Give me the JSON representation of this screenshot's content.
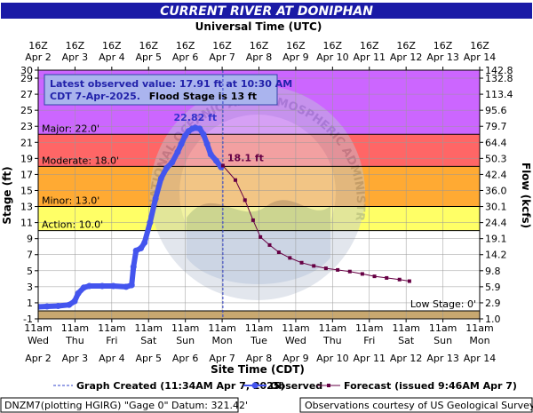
{
  "title": "CURRENT RIVER AT DONIPHAN",
  "top_axis_title": "Universal Time (UTC)",
  "bottom_axis_title": "Site Time (CDT)",
  "left_axis_title": "Stage (ft)",
  "right_axis_title": "Flow (kcfs)",
  "info_box": {
    "line1": "Latest observed value: 17.91 ft at 10:30 AM",
    "line2a": "CDT 7-Apr-2025.",
    "line2b": "Flood Stage is 13 ft"
  },
  "watermark_text": "NATIONAL OCEANIC AND ATMOSPHERIC ADMINISTRATION · U.S. DEPARTMENT OF COMMERCE",
  "legend": {
    "graph_created": "Graph Created (11:34AM Apr 7, 2025)",
    "observed": "Observed",
    "forecast": "Forecast (issued 9:46AM Apr 7)"
  },
  "footer": {
    "left": "DNZM7(plotting HGIRG) \"Gage 0\" Datum: 321.42'",
    "right": "Observations courtesy of US Geological Survey"
  },
  "colors": {
    "title_bg": "#1a1aa6",
    "major": "#cc66ff",
    "moderate": "#ff6666",
    "minor": "#ffaa33",
    "action": "#ffff66",
    "low": "#c8a870",
    "observed": "#4455ee",
    "forecast": "#660044",
    "crest_label": "#3333cc",
    "info_text": "#2222aa"
  },
  "chart_data": {
    "type": "line",
    "x_unit": "days since Apr 2 00:00 CDT",
    "stage_ylim": [
      -1,
      30
    ],
    "stage_ticks": [
      -1,
      1,
      3,
      5,
      7,
      9,
      11,
      13,
      15,
      17,
      19,
      21,
      23,
      25,
      27,
      29,
      30
    ],
    "flow_ticks": [
      {
        "stage": -1,
        "label": "1.0"
      },
      {
        "stage": 1,
        "label": "2.9"
      },
      {
        "stage": 3,
        "label": "5.9"
      },
      {
        "stage": 5,
        "label": "9.8"
      },
      {
        "stage": 7,
        "label": "14.2"
      },
      {
        "stage": 9,
        "label": "19.1"
      },
      {
        "stage": 11,
        "label": "24.4"
      },
      {
        "stage": 13,
        "label": "30.1"
      },
      {
        "stage": 15,
        "label": "36.0"
      },
      {
        "stage": 17,
        "label": "42.4"
      },
      {
        "stage": 19,
        "label": "50.3"
      },
      {
        "stage": 21,
        "label": "64.4"
      },
      {
        "stage": 23,
        "label": "79.7"
      },
      {
        "stage": 25,
        "label": "95.6"
      },
      {
        "stage": 27,
        "label": "113.4"
      },
      {
        "stage": 29,
        "label": "132.8"
      },
      {
        "stage": 30,
        "label": "142.8"
      }
    ],
    "bottom_ticks": [
      {
        "x": -0.54,
        "l1": "11am",
        "l2": "Wed",
        "l3": "Apr 2"
      },
      {
        "x": 0.46,
        "l1": "11am",
        "l2": "Thu",
        "l3": "Apr 3"
      },
      {
        "x": 1.46,
        "l1": "11am",
        "l2": "Fri",
        "l3": "Apr 4"
      },
      {
        "x": 2.46,
        "l1": "11am",
        "l2": "Sat",
        "l3": "Apr 5"
      },
      {
        "x": 3.46,
        "l1": "11am",
        "l2": "Sun",
        "l3": "Apr 6"
      },
      {
        "x": 4.46,
        "l1": "11am",
        "l2": "Mon",
        "l3": "Apr 7"
      },
      {
        "x": 5.46,
        "l1": "11am",
        "l2": "Tue",
        "l3": "Apr 8"
      },
      {
        "x": 6.46,
        "l1": "11am",
        "l2": "Wed",
        "l3": "Apr 9"
      },
      {
        "x": 7.46,
        "l1": "11am",
        "l2": "Thu",
        "l3": "Apr 10"
      },
      {
        "x": 8.46,
        "l1": "11am",
        "l2": "Fri",
        "l3": "Apr 11"
      },
      {
        "x": 9.46,
        "l1": "11am",
        "l2": "Sat",
        "l3": "Apr 12"
      },
      {
        "x": 10.46,
        "l1": "11am",
        "l2": "Sun",
        "l3": "Apr 13"
      },
      {
        "x": 11.46,
        "l1": "11am",
        "l2": "Mon",
        "l3": "Apr 14"
      }
    ],
    "top_ticks": [
      {
        "x": -0.54,
        "l1": "16Z",
        "l2": "Apr 2"
      },
      {
        "x": 0.46,
        "l1": "16Z",
        "l2": "Apr 3"
      },
      {
        "x": 1.46,
        "l1": "16Z",
        "l2": "Apr 4"
      },
      {
        "x": 2.46,
        "l1": "16Z",
        "l2": "Apr 5"
      },
      {
        "x": 3.46,
        "l1": "16Z",
        "l2": "Apr 6"
      },
      {
        "x": 4.46,
        "l1": "16Z",
        "l2": "Apr 7"
      },
      {
        "x": 5.46,
        "l1": "16Z",
        "l2": "Apr 8"
      },
      {
        "x": 6.46,
        "l1": "16Z",
        "l2": "Apr 9"
      },
      {
        "x": 7.46,
        "l1": "16Z",
        "l2": "Apr 10"
      },
      {
        "x": 8.46,
        "l1": "16Z",
        "l2": "Apr 11"
      },
      {
        "x": 9.46,
        "l1": "16Z",
        "l2": "Apr 12"
      },
      {
        "x": 10.46,
        "l1": "16Z",
        "l2": "Apr 13"
      },
      {
        "x": 11.46,
        "l1": "16Z",
        "l2": "Apr 14"
      }
    ],
    "flood_categories": [
      {
        "key": "low",
        "label": "Low Stage: 0'",
        "from": -1,
        "to": 0,
        "label_side": "right"
      },
      {
        "key": "action",
        "label": "Action: 10.0'",
        "from": 10,
        "to": 13,
        "label_side": "left"
      },
      {
        "key": "minor",
        "label": "Minor: 13.0'",
        "from": 13,
        "to": 18,
        "label_side": "left"
      },
      {
        "key": "moderate",
        "label": "Moderate: 18.0'",
        "from": 18,
        "to": 22,
        "label_side": "left"
      },
      {
        "key": "major",
        "label": "Major: 22.0'",
        "from": 22,
        "to": 30,
        "label_side": "left"
      }
    ],
    "graph_created_x": 4.48,
    "crest_label": "22.82 ft",
    "crest": [
      3.73,
      22.82
    ],
    "forecast_crest_label": "18.1 ft",
    "forecast_crest": [
      4.48,
      18.1
    ],
    "observed": [
      [
        -0.54,
        0.5
      ],
      [
        -0.3,
        0.55
      ],
      [
        0.0,
        0.6
      ],
      [
        0.3,
        0.75
      ],
      [
        0.45,
        1.2
      ],
      [
        0.55,
        2.2
      ],
      [
        0.7,
        2.9
      ],
      [
        0.85,
        3.1
      ],
      [
        1.2,
        3.1
      ],
      [
        1.5,
        3.1
      ],
      [
        1.85,
        3.0
      ],
      [
        2.0,
        3.2
      ],
      [
        2.05,
        5.5
      ],
      [
        2.12,
        7.5
      ],
      [
        2.25,
        7.8
      ],
      [
        2.35,
        8.5
      ],
      [
        2.5,
        11.0
      ],
      [
        2.65,
        14.0
      ],
      [
        2.8,
        16.5
      ],
      [
        2.95,
        17.8
      ],
      [
        3.1,
        18.5
      ],
      [
        3.25,
        19.8
      ],
      [
        3.35,
        20.8
      ],
      [
        3.45,
        21.8
      ],
      [
        3.55,
        22.4
      ],
      [
        3.65,
        22.7
      ],
      [
        3.73,
        22.82
      ],
      [
        3.85,
        22.7
      ],
      [
        3.95,
        22.0
      ],
      [
        4.05,
        20.8
      ],
      [
        4.15,
        19.5
      ],
      [
        4.3,
        18.7
      ],
      [
        4.43,
        17.91
      ]
    ],
    "forecast": [
      [
        4.48,
        18.1
      ],
      [
        4.82,
        16.3
      ],
      [
        5.08,
        13.8
      ],
      [
        5.3,
        11.3
      ],
      [
        5.5,
        9.2
      ],
      [
        5.75,
        8.2
      ],
      [
        6.0,
        7.3
      ],
      [
        6.3,
        6.6
      ],
      [
        6.62,
        6.0
      ],
      [
        6.95,
        5.6
      ],
      [
        7.28,
        5.3
      ],
      [
        7.6,
        5.1
      ],
      [
        7.93,
        4.9
      ],
      [
        8.27,
        4.6
      ],
      [
        8.6,
        4.3
      ],
      [
        8.93,
        4.1
      ],
      [
        9.28,
        3.9
      ],
      [
        9.55,
        3.7
      ]
    ]
  }
}
